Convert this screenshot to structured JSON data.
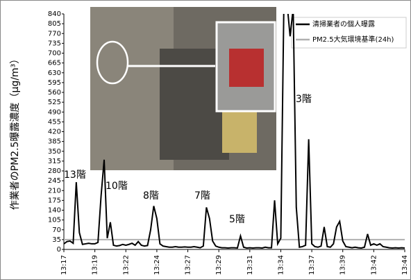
{
  "chart_data": {
    "type": "line",
    "y_label": "作業者のPM2.5曝露濃度（μg/m³）",
    "categories": [
      "13:17",
      null,
      null,
      null,
      null,
      null,
      null,
      null,
      null,
      null,
      "13:19",
      null,
      null,
      null,
      null,
      null,
      null,
      null,
      null,
      null,
      "13:22",
      null,
      null,
      null,
      null,
      null,
      null,
      null,
      null,
      null,
      "13:24",
      null,
      null,
      null,
      null,
      null,
      null,
      null,
      null,
      null,
      "13:27",
      null,
      null,
      null,
      null,
      null,
      null,
      null,
      null,
      null,
      "13:29",
      null,
      null,
      null,
      null,
      null,
      null,
      null,
      null,
      null,
      "13:31",
      null,
      null,
      null,
      null,
      null,
      null,
      null,
      null,
      null,
      "13:34",
      null,
      null,
      null,
      null,
      null,
      null,
      null,
      null,
      null,
      "13:37",
      null,
      null,
      null,
      null,
      null,
      null,
      null,
      null,
      null,
      "13:39",
      null,
      null,
      null,
      null,
      null,
      null,
      null,
      null,
      null,
      "13:42",
      null,
      null,
      null,
      null,
      null,
      null,
      null,
      null,
      null,
      "13:44"
    ],
    "series": [
      {
        "name": "清掃業者の個人曝露",
        "color": "#000000",
        "width": 2,
        "values": [
          20,
          28,
          30,
          22,
          240,
          60,
          18,
          20,
          22,
          20,
          20,
          25,
          190,
          320,
          40,
          97,
          15,
          12,
          14,
          18,
          15,
          18,
          22,
          15,
          28,
          15,
          12,
          14,
          70,
          155,
          110,
          20,
          12,
          10,
          8,
          8,
          10,
          8,
          8,
          9,
          8,
          8,
          10,
          8,
          6,
          12,
          150,
          110,
          30,
          12,
          8,
          6,
          6,
          5,
          6,
          6,
          5,
          48,
          8,
          5,
          6,
          5,
          6,
          6,
          5,
          8,
          6,
          6,
          175,
          20,
          40,
          880,
          880,
          760,
          860,
          150,
          8,
          10,
          15,
          393,
          20,
          10,
          8,
          12,
          80,
          10,
          8,
          20,
          80,
          100,
          30,
          10,
          8,
          6,
          8,
          6,
          5,
          8,
          55,
          15,
          20,
          15,
          20,
          10,
          8,
          6,
          5,
          6,
          5,
          6,
          5
        ]
      },
      {
        "name": "PM2.5大気環境基準(24h)",
        "color": "#b0b0b0",
        "width": 2,
        "values": [
          35,
          35,
          35,
          35,
          35,
          35,
          35,
          35,
          35,
          35,
          35,
          35,
          35,
          35,
          35,
          35,
          35,
          35,
          35,
          35,
          35,
          35,
          35,
          35,
          35,
          35,
          35,
          35,
          35,
          35,
          35,
          35,
          35,
          35,
          35,
          35,
          35,
          35,
          35,
          35,
          35,
          35,
          35,
          35,
          35,
          35,
          35,
          35,
          35,
          35,
          35,
          35,
          35,
          35,
          35,
          35,
          35,
          35,
          35,
          35,
          35,
          35,
          35,
          35,
          35,
          35,
          35,
          35,
          35,
          35,
          35,
          35,
          35,
          35,
          35,
          35,
          35,
          35,
          35,
          35,
          35,
          35,
          35,
          35,
          35,
          35,
          35,
          35,
          35,
          35,
          35,
          35,
          35,
          35,
          35,
          35,
          35,
          35,
          35,
          35,
          35,
          35,
          35,
          35,
          35,
          35,
          35,
          35,
          35,
          35,
          35
        ]
      }
    ],
    "annotations": [
      "13階",
      "10階",
      "8階",
      "7階",
      "5階",
      "3階"
    ],
    "ylim": [
      0,
      840
    ],
    "yticks": [
      0,
      35,
      70,
      105,
      140,
      175,
      210,
      245,
      280,
      315,
      350,
      385,
      420,
      455,
      490,
      525,
      560,
      595,
      630,
      665,
      700,
      735,
      770,
      805,
      840
    ],
    "grid": false
  }
}
